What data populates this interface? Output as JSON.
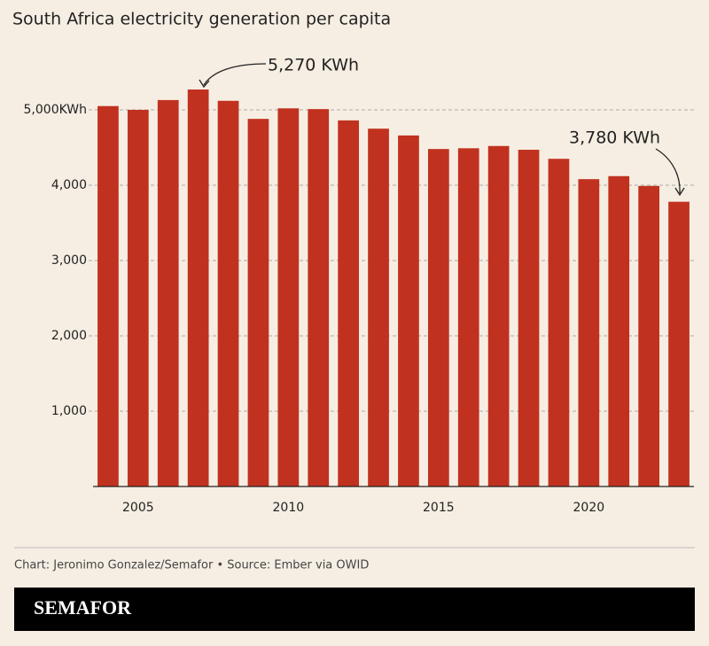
{
  "chart_data": {
    "type": "bar",
    "title": "South Africa electricity generation per capita",
    "x": [
      2004,
      2005,
      2006,
      2007,
      2008,
      2009,
      2010,
      2011,
      2012,
      2013,
      2014,
      2015,
      2016,
      2017,
      2018,
      2019,
      2020,
      2021,
      2022,
      2023
    ],
    "values": [
      5050,
      5000,
      5130,
      5270,
      5120,
      4880,
      5020,
      5010,
      4860,
      4750,
      4660,
      4480,
      4490,
      4520,
      4470,
      4350,
      4080,
      4120,
      3990,
      3780
    ],
    "color": "#c0321f",
    "xlim": [
      2003.5,
      2023.5
    ],
    "xticks": [
      2005,
      2010,
      2015,
      2020
    ],
    "ylim": [
      0,
      5870
    ],
    "yticks": [
      {
        "value": 1000,
        "label": "1,000"
      },
      {
        "value": 2000,
        "label": "2,000"
      },
      {
        "value": 3000,
        "label": "3,000"
      },
      {
        "value": 4000,
        "label": "4,000"
      },
      {
        "value": 5000,
        "label": "5,000KWh"
      }
    ],
    "grid": true,
    "annotations": [
      "5,270 KWh",
      "3,780 KWh"
    ],
    "source": "Chart: Jeronimo Gonzalez/Semafor • Source: Ember via OWID",
    "brand": "SEMAFOR"
  }
}
